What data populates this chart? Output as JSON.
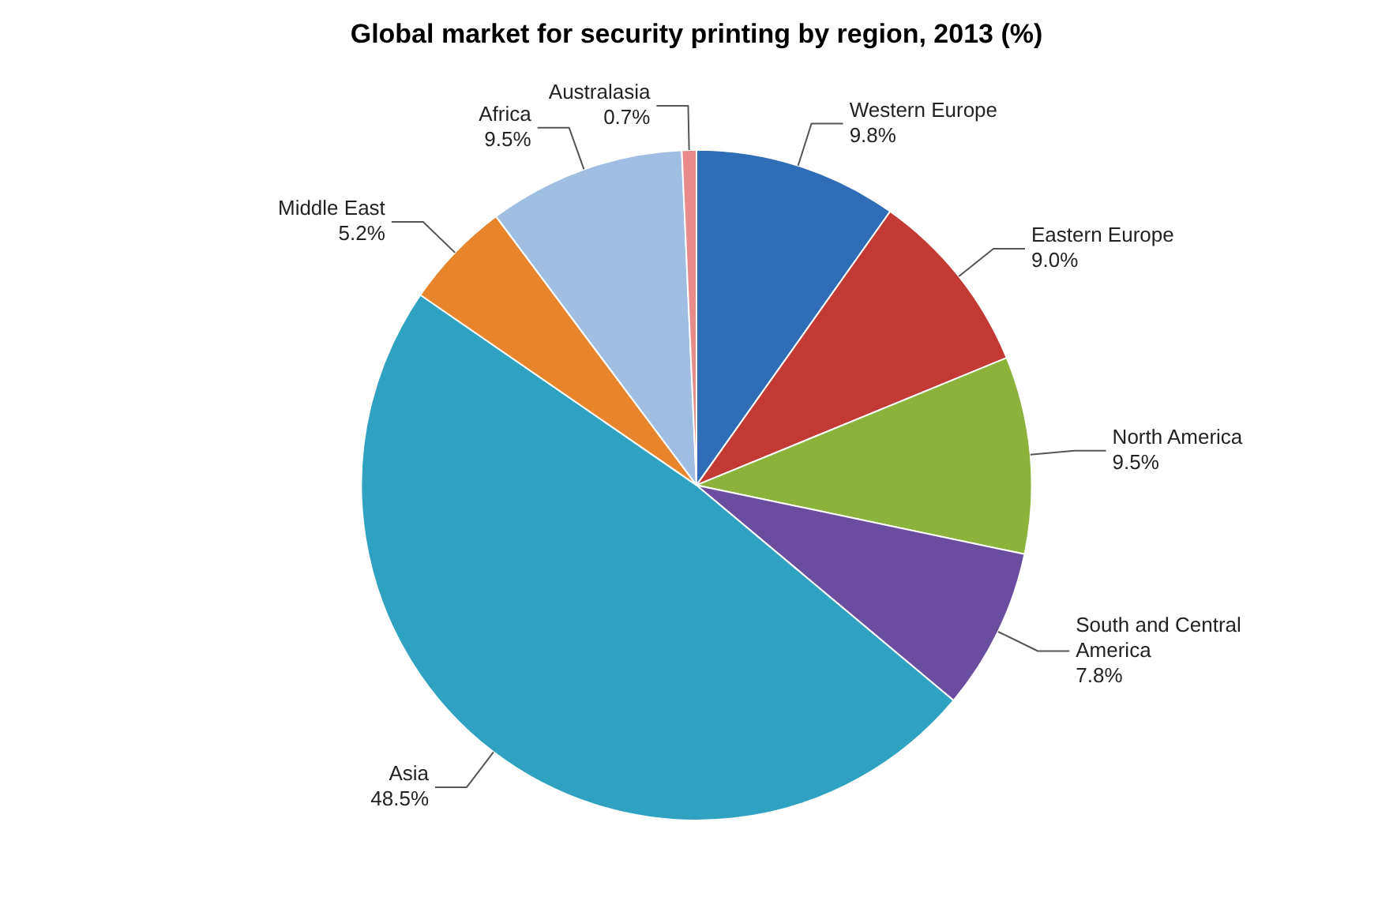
{
  "chart_data": {
    "type": "pie",
    "title": "Global market for security printing by region, 2013 (%)",
    "categories": [
      "Western Europe",
      "Eastern Europe",
      "North America",
      "South and Central America",
      "Asia",
      "Middle East",
      "Africa",
      "Australasia"
    ],
    "values": [
      9.8,
      9.0,
      9.5,
      7.8,
      48.5,
      5.2,
      9.5,
      0.7
    ],
    "value_labels": [
      "9.8%",
      "9.0%",
      "9.5%",
      "7.8%",
      "48.5%",
      "5.2%",
      "9.5%",
      "0.7%"
    ],
    "colors": [
      "#2f6db6",
      "#c23a33",
      "#8bb33b",
      "#6a4d9e",
      "#2fa2c2",
      "#e8842b",
      "#a0bde2",
      "#e98b8b"
    ],
    "legend": false
  }
}
